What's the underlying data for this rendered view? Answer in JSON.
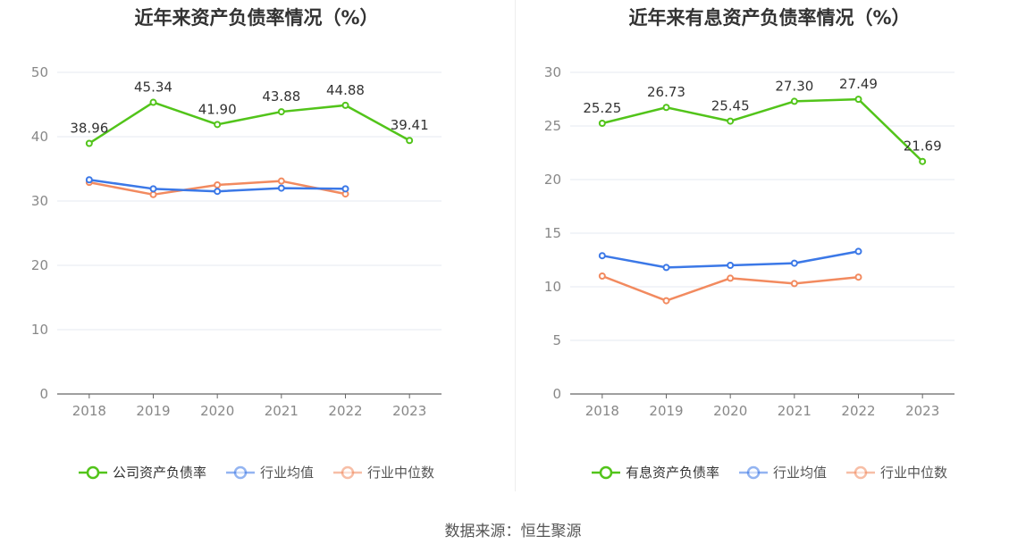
{
  "source_label": "数据来源：恒生聚源",
  "chart_data": [
    {
      "type": "line",
      "title": "近年来资产负债率情况（%）",
      "categories": [
        "2018",
        "2019",
        "2020",
        "2021",
        "2022",
        "2023"
      ],
      "ylim": [
        0,
        50
      ],
      "yticks": [
        "0",
        "10",
        "20",
        "30",
        "40",
        "50"
      ],
      "grid": true,
      "legend_position": "bottom",
      "series": [
        {
          "name": "公司资产负债率",
          "color": "#52c41a",
          "values": [
            38.96,
            45.34,
            41.9,
            43.88,
            44.88,
            39.41
          ],
          "labels": [
            "38.96",
            "45.34",
            "41.90",
            "43.88",
            "44.88",
            "39.41"
          ]
        },
        {
          "name": "行业均值",
          "color": "#3b78e7",
          "values": [
            33.3,
            31.9,
            31.5,
            32.0,
            31.9,
            null
          ]
        },
        {
          "name": "行业中位数",
          "color": "#f28a5f",
          "values": [
            32.9,
            31.0,
            32.5,
            33.1,
            31.1,
            null
          ]
        }
      ]
    },
    {
      "type": "line",
      "title": "近年来有息资产负债率情况（%）",
      "categories": [
        "2018",
        "2019",
        "2020",
        "2021",
        "2022",
        "2023"
      ],
      "ylim": [
        0,
        30
      ],
      "yticks": [
        "0",
        "5",
        "10",
        "15",
        "20",
        "25",
        "30"
      ],
      "grid": true,
      "legend_position": "bottom",
      "series": [
        {
          "name": "有息资产负债率",
          "color": "#52c41a",
          "values": [
            25.25,
            26.73,
            25.45,
            27.3,
            27.49,
            21.69
          ],
          "labels": [
            "25.25",
            "26.73",
            "25.45",
            "27.30",
            "27.49",
            "21.69"
          ]
        },
        {
          "name": "行业均值",
          "color": "#3b78e7",
          "values": [
            12.9,
            11.8,
            12.0,
            12.2,
            13.3,
            null
          ]
        },
        {
          "name": "行业中位数",
          "color": "#f28a5f",
          "values": [
            11.0,
            8.7,
            10.8,
            10.3,
            10.9,
            null
          ]
        }
      ]
    }
  ]
}
